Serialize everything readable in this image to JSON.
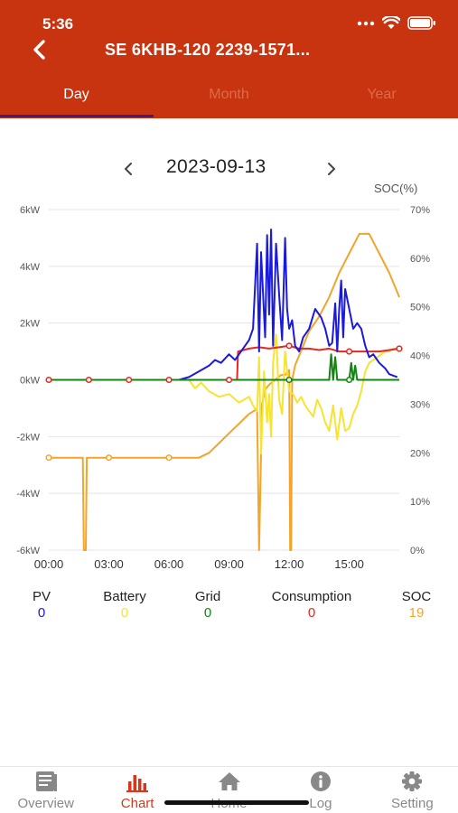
{
  "status_bar": {
    "time": "5:36"
  },
  "header": {
    "title": "SE 6KHB-120 2239-1571..."
  },
  "tabs": [
    {
      "label": "Day",
      "active": true
    },
    {
      "label": "Month",
      "active": false
    },
    {
      "label": "Year",
      "active": false
    }
  ],
  "date": "2023-09-13",
  "legend": [
    {
      "name": "PV",
      "value": "0",
      "color": "#1a1adb"
    },
    {
      "name": "Battery",
      "value": "0",
      "color": "#f5e431"
    },
    {
      "name": "Grid",
      "value": "0",
      "color": "#128512"
    },
    {
      "name": "Consumption",
      "value": "0",
      "color": "#e6271e"
    },
    {
      "name": "SOC",
      "value": "19",
      "color": "#f2a52a"
    }
  ],
  "nav": [
    {
      "label": "Overview",
      "icon": "overview-icon",
      "active": false
    },
    {
      "label": "Chart",
      "icon": "chart-icon",
      "active": true
    },
    {
      "label": "Home",
      "icon": "home-icon",
      "active": false
    },
    {
      "label": "Log",
      "icon": "info-icon",
      "active": false
    },
    {
      "label": "Setting",
      "icon": "gear-icon",
      "active": false
    }
  ],
  "chart_data": {
    "type": "line",
    "x_unit": "hours",
    "x_ticks": [
      "00:00",
      "03:00",
      "06:00",
      "09:00",
      "12:00",
      "15:00"
    ],
    "xlim": [
      0,
      17.5
    ],
    "y_left": {
      "label": "",
      "ticks": [
        "6kW",
        "4kW",
        "2kW",
        "0kW",
        "-2kW",
        "-4kW",
        "-6kW"
      ],
      "ylim": [
        -6,
        6
      ]
    },
    "y_right": {
      "label": "SOC(%)",
      "ticks": [
        "70%",
        "60%",
        "50%",
        "40%",
        "30%",
        "20%",
        "10%",
        "0%"
      ],
      "ylim": [
        0,
        70
      ]
    },
    "grid": true,
    "series": [
      {
        "name": "PV",
        "color": "#1a1adb",
        "axis": "left",
        "x": [
          0,
          6.5,
          7.0,
          7.5,
          8.0,
          8.3,
          8.6,
          9.0,
          9.3,
          9.6,
          10.0,
          10.2,
          10.4,
          10.5,
          10.6,
          10.8,
          10.9,
          11.0,
          11.1,
          11.2,
          11.35,
          11.5,
          11.65,
          11.8,
          11.9,
          12.0,
          12.15,
          12.3,
          12.5,
          12.7,
          13.0,
          13.3,
          13.6,
          13.8,
          14.0,
          14.15,
          14.3,
          14.4,
          14.5,
          14.6,
          14.7,
          14.8,
          15.0,
          15.2,
          15.4,
          15.6,
          15.8,
          16.0,
          16.2,
          16.5,
          16.8,
          17.0,
          17.2,
          17.4
        ],
        "y": [
          0,
          0,
          0.1,
          0.3,
          0.5,
          0.7,
          0.6,
          0.9,
          0.7,
          1.0,
          1.4,
          1.8,
          4.8,
          1.0,
          4.5,
          1.5,
          5.1,
          2.3,
          5.3,
          1.2,
          4.8,
          3.0,
          1.4,
          5.0,
          2.5,
          1.8,
          2.1,
          1.2,
          1.0,
          1.5,
          1.8,
          2.5,
          2.2,
          1.8,
          1.2,
          1.3,
          2.7,
          1.0,
          2.5,
          3.5,
          1.5,
          3.2,
          2.5,
          1.8,
          2.0,
          1.8,
          1.2,
          0.8,
          0.9,
          0.6,
          0.4,
          0.2,
          0.15,
          0.1
        ]
      },
      {
        "name": "Battery",
        "color": "#f5e431",
        "axis": "left",
        "x": [
          0,
          7.0,
          7.3,
          7.6,
          8.0,
          8.5,
          9.0,
          9.5,
          10.0,
          10.2,
          10.4,
          10.5,
          10.6,
          10.75,
          10.9,
          11.0,
          11.1,
          11.2,
          11.35,
          11.5,
          11.65,
          11.8,
          12.0,
          12.2,
          12.4,
          12.6,
          12.8,
          13.0,
          13.2,
          13.4,
          13.6,
          13.8,
          14.0,
          14.2,
          14.4,
          14.6,
          14.8,
          15.0,
          15.2,
          15.4,
          15.6,
          15.8,
          16.0,
          16.2,
          16.4,
          16.6,
          16.8,
          17.0,
          17.2,
          17.4
        ],
        "y": [
          0,
          0,
          -0.3,
          -0.1,
          -0.4,
          -0.6,
          -0.5,
          -0.8,
          -0.6,
          -0.9,
          -1.1,
          0.8,
          -2.6,
          0.3,
          -1.5,
          -0.5,
          -2.0,
          0.6,
          1.6,
          -0.7,
          -1.2,
          1.0,
          -0.4,
          -0.5,
          -0.8,
          -0.6,
          -0.9,
          -1.1,
          -1.3,
          -0.7,
          -1.0,
          -1.5,
          -1.8,
          -0.9,
          -2.1,
          -1.0,
          -1.8,
          -1.7,
          -1.2,
          -0.9,
          -0.4,
          0.3,
          0.6,
          0.7,
          0.8,
          0.9,
          1.0,
          1.0,
          1.1,
          1.1
        ]
      },
      {
        "name": "Grid",
        "color": "#128512",
        "axis": "left",
        "x": [
          0,
          14.0,
          14.1,
          14.2,
          14.3,
          14.4,
          15.0,
          15.1,
          15.2,
          15.3,
          15.4,
          17.5
        ],
        "y": [
          0,
          0,
          0.9,
          0.0,
          0.8,
          0,
          0,
          0.6,
          0,
          0.5,
          0,
          0
        ]
      },
      {
        "name": "Consumption",
        "color": "#e6271e",
        "axis": "left",
        "x": [
          0,
          9.0,
          9.4,
          9.45,
          10.0,
          10.5,
          11.0,
          11.5,
          12.0,
          12.5,
          13.0,
          13.5,
          14.0,
          14.5,
          15.0,
          15.5,
          16.0,
          16.5,
          17.0,
          17.5
        ],
        "y": [
          0,
          0,
          0,
          1.0,
          1.1,
          1.15,
          1.1,
          1.15,
          1.2,
          1.1,
          1.1,
          1.05,
          1.1,
          1.0,
          1.0,
          1.0,
          1.0,
          1.0,
          1.05,
          1.1
        ]
      },
      {
        "name": "SOC",
        "color": "#f2a52a",
        "axis": "right",
        "x": [
          0,
          1.7,
          1.75,
          1.85,
          1.9,
          7.5,
          8.0,
          8.5,
          9.0,
          9.5,
          10.0,
          10.4,
          10.5,
          10.65,
          10.8,
          11.0,
          11.3,
          11.6,
          11.8,
          12.0,
          12.05,
          12.1,
          12.15,
          12.3,
          12.6,
          13.0,
          13.5,
          14.0,
          14.5,
          15.0,
          15.5,
          16.0,
          16.5,
          17.0,
          17.5
        ],
        "y": [
          19,
          19,
          0,
          0,
          19,
          19,
          20,
          22,
          24,
          26,
          28,
          29,
          0,
          30,
          33,
          34,
          35,
          36,
          36,
          37,
          0,
          0,
          35,
          38,
          41,
          45,
          48,
          52,
          57,
          61,
          65,
          65,
          61,
          57,
          52
        ]
      }
    ]
  }
}
